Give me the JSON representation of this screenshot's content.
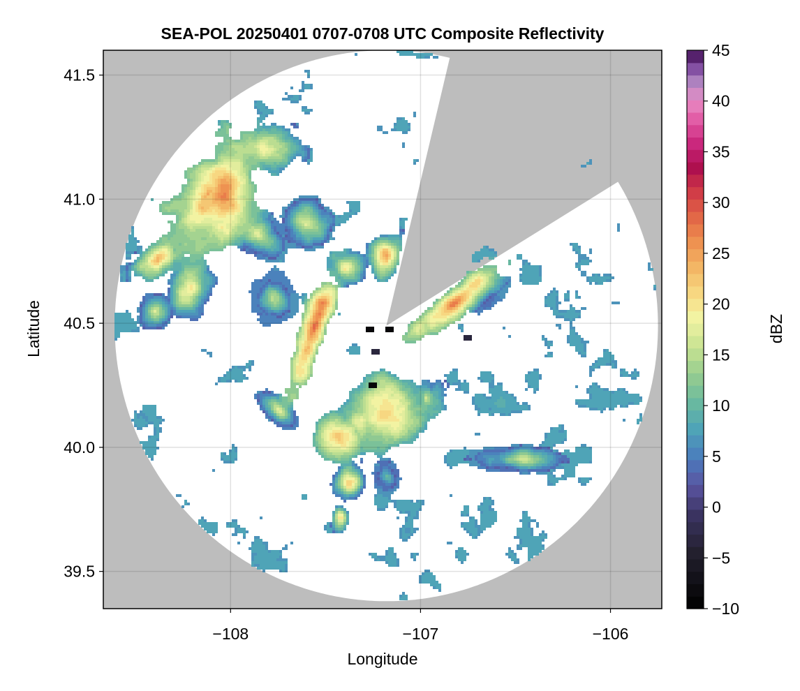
{
  "chart_data": {
    "type": "heatmap",
    "title": "SEA-POL 20250401 0707-0708 UTC Composite Reflectivity",
    "xlabel": "Longitude",
    "ylabel": "Latitude",
    "xlim": [
      -108.67,
      -105.73
    ],
    "ylim": [
      39.35,
      41.6
    ],
    "xticks": [
      -108,
      -107,
      -106
    ],
    "xtick_labels": [
      "−108",
      "−107",
      "−106"
    ],
    "yticks": [
      39.5,
      40.0,
      40.5,
      41.0,
      41.5
    ],
    "ytick_labels": [
      "39.5",
      "40.0",
      "40.5",
      "41.0",
      "41.5"
    ],
    "grid": true,
    "background_color": "#bdbdbd",
    "no_echo_color": "#ffffff",
    "radar_center": [
      -107.18,
      40.49
    ],
    "radar_range_deg": [
      1.43,
      1.11
    ],
    "blocked_sectors_azimuth_deg": [
      [
        14,
        58
      ]
    ],
    "colorbar": {
      "label": "dBZ",
      "range": [
        -10,
        45
      ],
      "ticks": [
        -10,
        -5,
        0,
        5,
        10,
        15,
        20,
        25,
        30,
        35,
        40,
        45
      ],
      "tick_labels": [
        "−10",
        "−5",
        "0",
        "5",
        "10",
        "15",
        "20",
        "25",
        "30",
        "35",
        "40",
        "45"
      ],
      "levels": 45,
      "colormap_stops": [
        [
          0.0,
          "#000000"
        ],
        [
          0.1,
          "#23202e"
        ],
        [
          0.17,
          "#3b3462"
        ],
        [
          0.22,
          "#5a54a0"
        ],
        [
          0.27,
          "#4b7cbd"
        ],
        [
          0.32,
          "#4ea3b8"
        ],
        [
          0.37,
          "#6ab99f"
        ],
        [
          0.42,
          "#97cd8f"
        ],
        [
          0.47,
          "#c9e392"
        ],
        [
          0.52,
          "#f2f4a4"
        ],
        [
          0.56,
          "#f8dc85"
        ],
        [
          0.61,
          "#f3b766"
        ],
        [
          0.66,
          "#ee8e4f"
        ],
        [
          0.71,
          "#df5f45"
        ],
        [
          0.75,
          "#cf3847"
        ],
        [
          0.79,
          "#ad0f4e"
        ],
        [
          0.83,
          "#c8247a"
        ],
        [
          0.87,
          "#e053a0"
        ],
        [
          0.91,
          "#e88bc4"
        ],
        [
          0.94,
          "#b58bc4"
        ],
        [
          0.97,
          "#7e4a9f"
        ],
        [
          1.0,
          "#3e0a4f"
        ]
      ]
    },
    "echo_regions": [
      {
        "name": "northwest-band",
        "center": [
          -108.1,
          41.0
        ],
        "radii": [
          0.35,
          0.22
        ],
        "angle_deg": 40,
        "peak_dbz": 27
      },
      {
        "name": "northwest-core",
        "center": [
          -108.12,
          41.02
        ],
        "radii": [
          0.15,
          0.12
        ],
        "angle_deg": 45,
        "peak_dbz": 28
      },
      {
        "name": "northwest-upper",
        "center": [
          -107.78,
          41.2
        ],
        "radii": [
          0.16,
          0.11
        ],
        "angle_deg": 0,
        "peak_dbz": 22
      },
      {
        "name": "west-arm",
        "center": [
          -108.38,
          40.75
        ],
        "radii": [
          0.15,
          0.08
        ],
        "angle_deg": 30,
        "peak_dbz": 24
      },
      {
        "name": "west-lobe",
        "center": [
          -108.2,
          40.65
        ],
        "radii": [
          0.14,
          0.16
        ],
        "angle_deg": 0,
        "peak_dbz": 20
      },
      {
        "name": "far-west-spots",
        "center": [
          -108.4,
          40.55
        ],
        "radii": [
          0.1,
          0.1
        ],
        "angle_deg": 0,
        "peak_dbz": 18
      },
      {
        "name": "central-north-a",
        "center": [
          -107.85,
          40.85
        ],
        "radii": [
          0.17,
          0.12
        ],
        "angle_deg": -10,
        "peak_dbz": 16
      },
      {
        "name": "central-north-b",
        "center": [
          -107.6,
          40.9
        ],
        "radii": [
          0.16,
          0.12
        ],
        "angle_deg": 0,
        "peak_dbz": 17
      },
      {
        "name": "central-north-c",
        "center": [
          -107.4,
          40.72
        ],
        "radii": [
          0.14,
          0.09
        ],
        "angle_deg": 0,
        "peak_dbz": 20
      },
      {
        "name": "central-northeast",
        "center": [
          -107.18,
          40.77
        ],
        "radii": [
          0.1,
          0.12
        ],
        "angle_deg": 0,
        "peak_dbz": 22
      },
      {
        "name": "central-line",
        "center": [
          -107.56,
          40.48
        ],
        "radii": [
          0.08,
          0.34
        ],
        "angle_deg": -25,
        "peak_dbz": 28
      },
      {
        "name": "central-west",
        "center": [
          -107.78,
          40.6
        ],
        "radii": [
          0.15,
          0.14
        ],
        "angle_deg": 0,
        "peak_dbz": 14
      },
      {
        "name": "east-band",
        "center": [
          -106.82,
          40.58
        ],
        "radii": [
          0.32,
          0.075
        ],
        "angle_deg": 30,
        "peak_dbz": 27
      },
      {
        "name": "east-fringe",
        "center": [
          -106.65,
          40.62
        ],
        "radii": [
          0.15,
          0.08
        ],
        "angle_deg": 30,
        "peak_dbz": 10
      },
      {
        "name": "south-cluster",
        "center": [
          -107.2,
          40.15
        ],
        "radii": [
          0.3,
          0.18
        ],
        "angle_deg": 0,
        "peak_dbz": 24
      },
      {
        "name": "south-west-cluster",
        "center": [
          -107.45,
          40.05
        ],
        "radii": [
          0.16,
          0.12
        ],
        "angle_deg": 0,
        "peak_dbz": 25
      },
      {
        "name": "southwest-arm",
        "center": [
          -107.75,
          40.15
        ],
        "radii": [
          0.16,
          0.07
        ],
        "angle_deg": -30,
        "peak_dbz": 17
      },
      {
        "name": "south-east-spot",
        "center": [
          -106.97,
          40.2
        ],
        "radii": [
          0.07,
          0.08
        ],
        "angle_deg": 0,
        "peak_dbz": 16
      },
      {
        "name": "south-tail-a",
        "center": [
          -107.38,
          39.85
        ],
        "radii": [
          0.1,
          0.1
        ],
        "angle_deg": 0,
        "peak_dbz": 20
      },
      {
        "name": "south-tail-b",
        "center": [
          -107.42,
          39.72
        ],
        "radii": [
          0.05,
          0.07
        ],
        "angle_deg": 0,
        "peak_dbz": 22
      },
      {
        "name": "south-east-specks",
        "center": [
          -106.5,
          39.95
        ],
        "radii": [
          0.28,
          0.07
        ],
        "angle_deg": 0,
        "peak_dbz": 16
      },
      {
        "name": "south-central-tail",
        "center": [
          -107.18,
          39.88
        ],
        "radii": [
          0.1,
          0.08
        ],
        "angle_deg": 0,
        "peak_dbz": 15
      }
    ]
  }
}
